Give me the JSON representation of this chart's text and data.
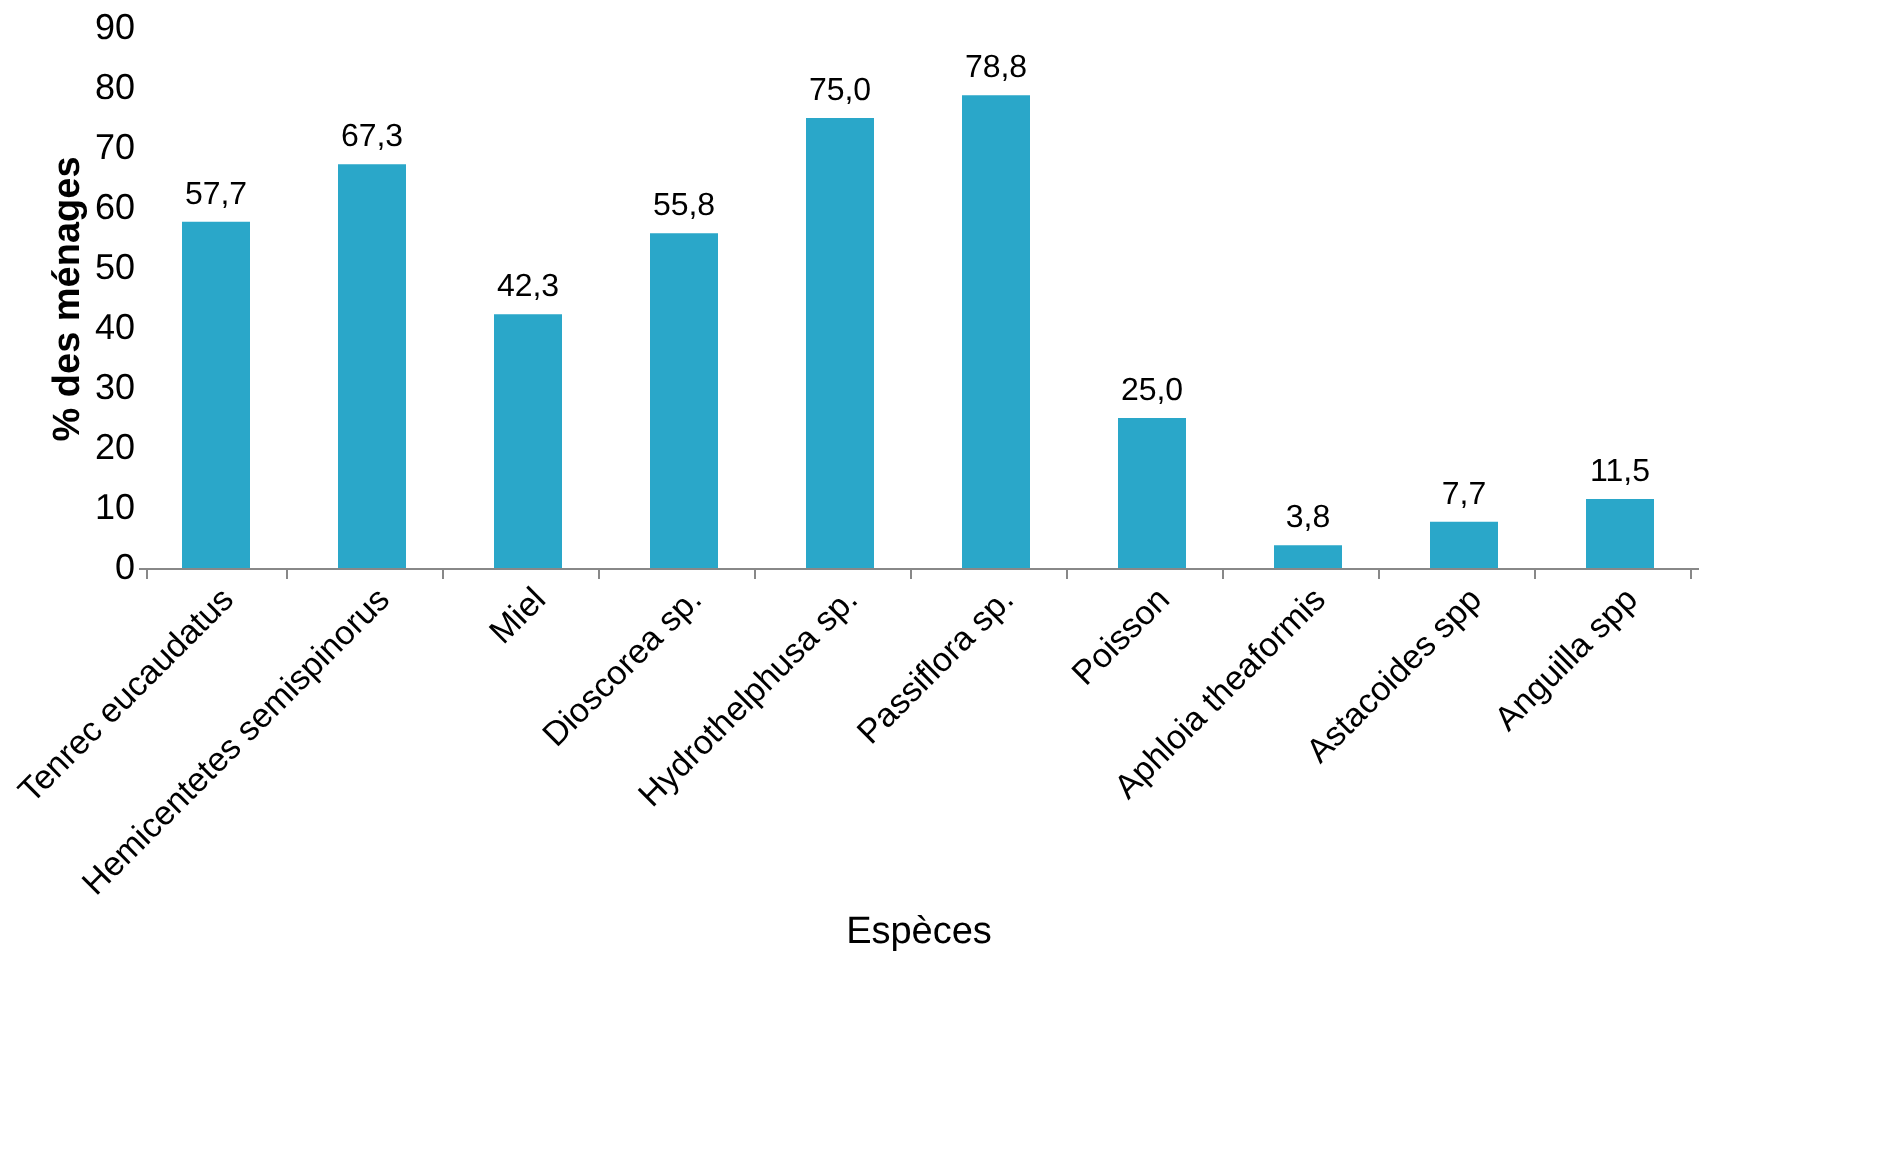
{
  "chart_data": {
    "type": "bar",
    "xlabel": "Espèces",
    "ylabel": "% des ménages",
    "categories": [
      "Tenrec eucaudatus",
      "Hemicentetes semispinorus",
      "Miel",
      "Dioscorea sp.",
      "Hydrothelphusa sp.",
      "Passiflora sp.",
      "Poisson",
      "Aphloia theaformis",
      "Astacoides spp",
      "Anguilla spp"
    ],
    "values": [
      57.7,
      67.3,
      42.3,
      55.8,
      75.0,
      78.8,
      25.0,
      3.8,
      7.7,
      11.5
    ],
    "value_labels": [
      "57,7",
      "67,3",
      "42,3",
      "55,8",
      "75,0",
      "78,8",
      "25,0",
      "3,8",
      "7,7",
      "11,5"
    ],
    "color": "#2aa7c9",
    "ylim": [
      0,
      90
    ],
    "yticks": [
      0,
      10,
      20,
      30,
      40,
      50,
      60,
      70,
      80,
      90
    ],
    "grid": false
  }
}
